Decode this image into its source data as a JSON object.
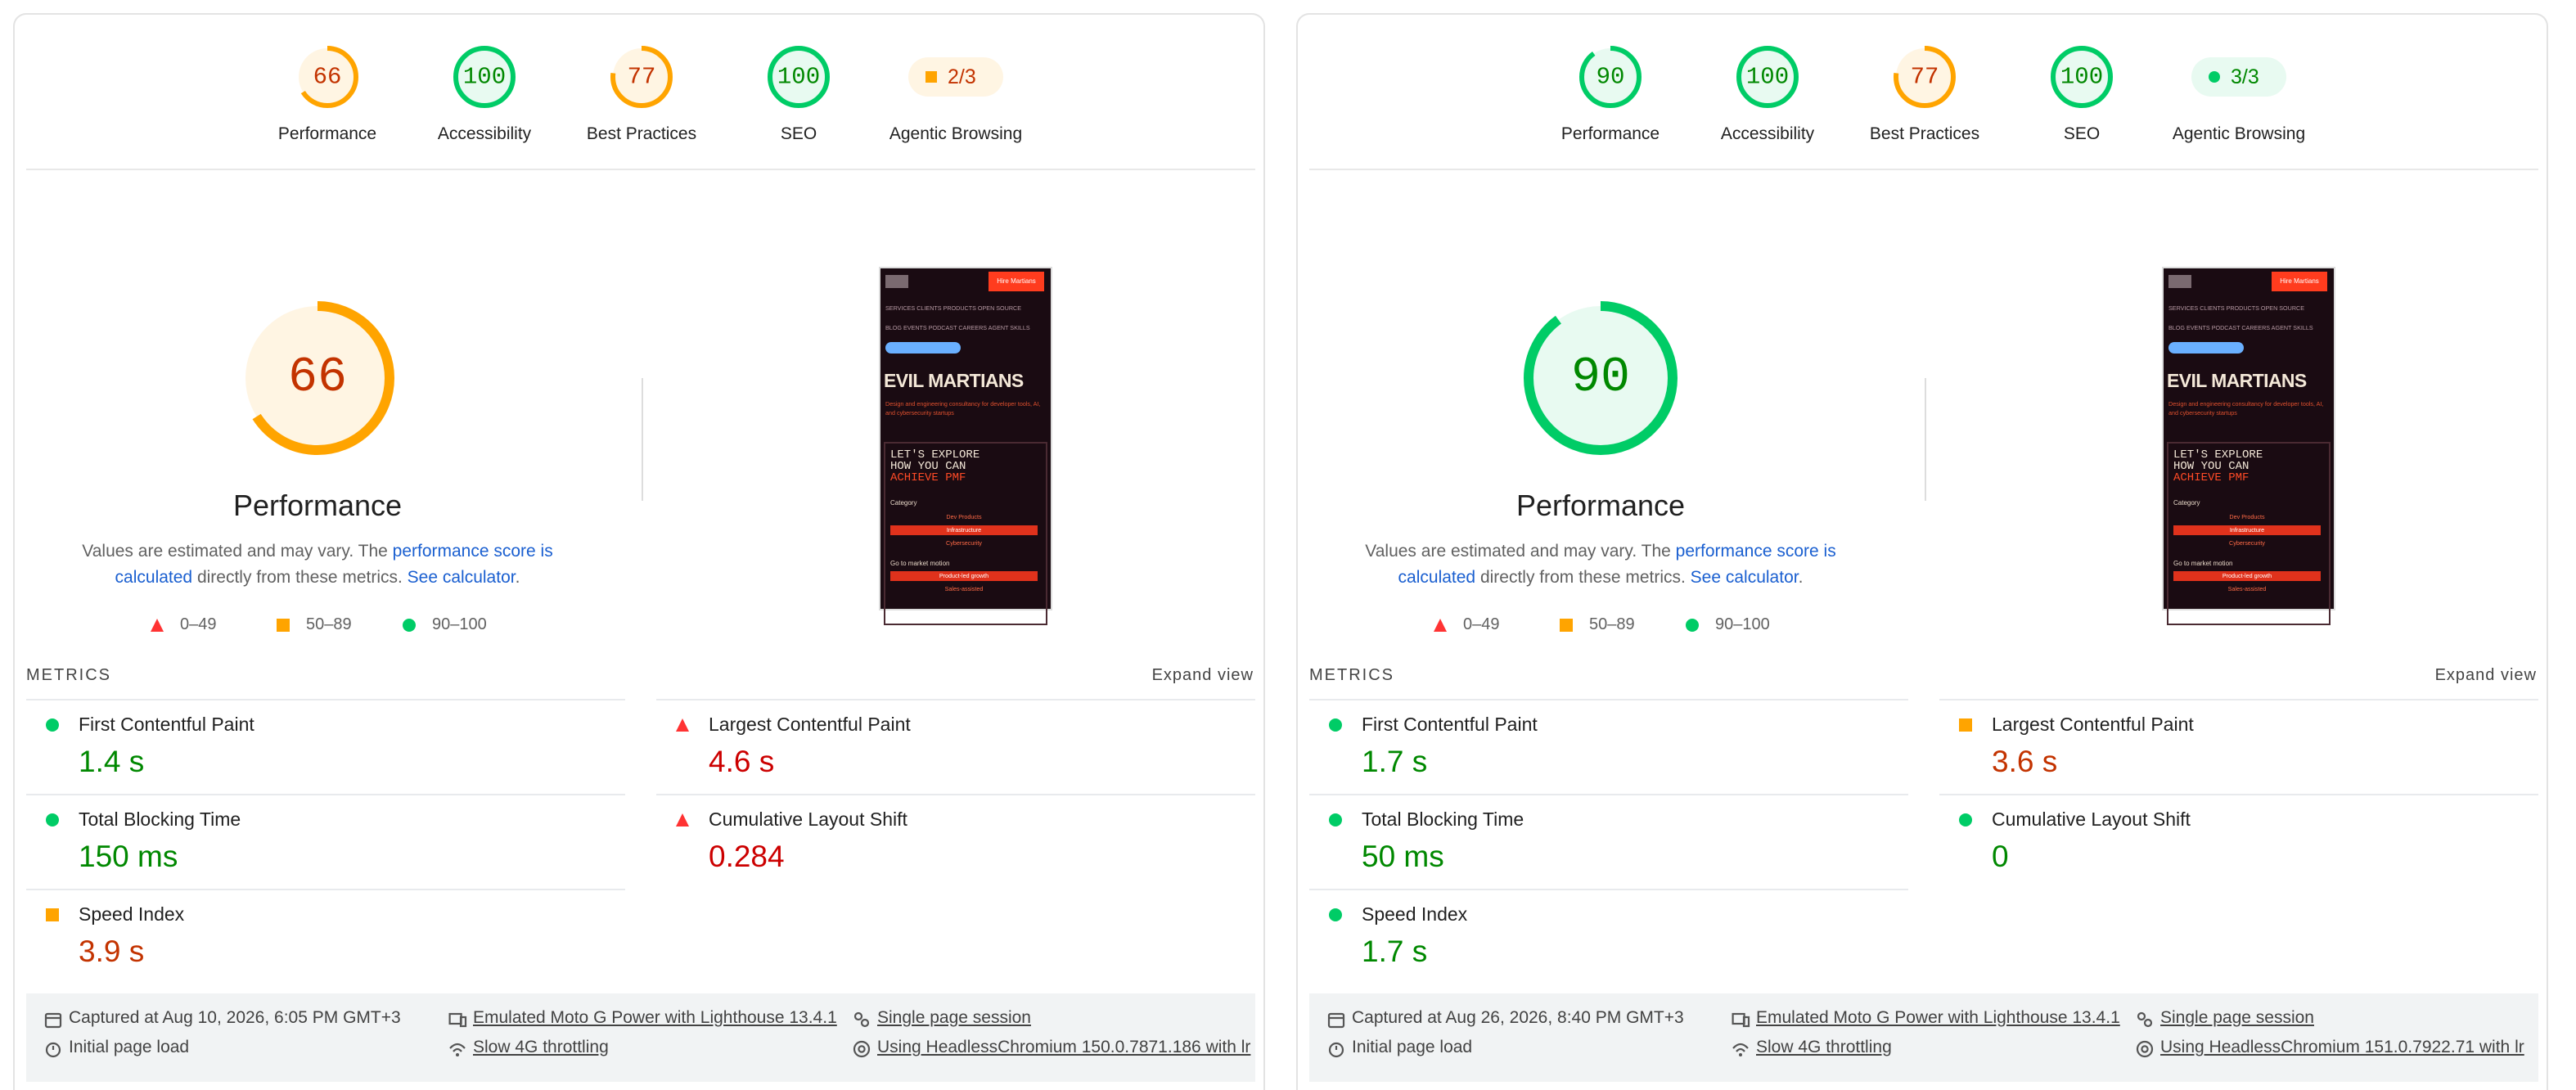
{
  "screenshot": {
    "button": "Hire Martians",
    "nav": [
      "SERVICES CLIENTS PRODUCTS OPEN SOURCE",
      "BLOG EVENTS PODCAST CAREERS AGENT SKILLS"
    ],
    "title": "EVIL MARTIANS",
    "subtitle": "Design and engineering consultancy for developer tools, AI, and cybersecurity startups",
    "headline": [
      "LET'S EXPLORE",
      "HOW YOU CAN"
    ],
    "highlight": "ACHIEVE PMF",
    "category_label": "Category",
    "categories": [
      "Dev Products",
      "Infrastructure",
      "Cybersecurity"
    ],
    "motion_label": "Go to market motion",
    "motions": [
      "Product-led growth",
      "Sales-assisted"
    ]
  },
  "reports": [
    {
      "categories": [
        {
          "label": "Performance",
          "score": 66,
          "rating": "average"
        },
        {
          "label": "Accessibility",
          "score": 100,
          "rating": "pass"
        },
        {
          "label": "Best Practices",
          "score": 77,
          "rating": "average"
        },
        {
          "label": "SEO",
          "score": 100,
          "rating": "pass"
        },
        {
          "label": "Agentic Browsing",
          "score": "2/3",
          "rating": "average"
        }
      ],
      "summary": {
        "before": "Values are estimated and may vary. The ",
        "link": "performance score is calculated",
        "middle": " directly from these metrics. ",
        "calculator": "See calculator",
        "after": "."
      },
      "legend": [
        {
          "rating": "fail",
          "label": "0–49"
        },
        {
          "rating": "average",
          "label": "50–89"
        },
        {
          "rating": "pass",
          "label": "90–100"
        }
      ],
      "metrics_title": "METRICS",
      "expand": "Expand view",
      "metrics": [
        {
          "label": "First Contentful Paint",
          "value": "1.4 s",
          "rating": "pass"
        },
        {
          "label": "Largest Contentful Paint",
          "value": "4.6 s",
          "rating": "fail"
        },
        {
          "label": "Total Blocking Time",
          "value": "150 ms",
          "rating": "pass"
        },
        {
          "label": "Cumulative Layout Shift",
          "value": "0.284",
          "rating": "fail"
        },
        {
          "label": "Speed Index",
          "value": "3.9 s",
          "rating": "average"
        }
      ],
      "footer": [
        "Captured at Aug 10, 2026, 6:05 PM GMT+3",
        "Initial page load",
        "Emulated Moto G Power with Lighthouse 13.4.1",
        "Slow 4G throttling",
        "Single page session",
        "Using HeadlessChromium 150.0.7871.186 with lr"
      ]
    },
    {
      "categories": [
        {
          "label": "Performance",
          "score": 90,
          "rating": "pass"
        },
        {
          "label": "Accessibility",
          "score": 100,
          "rating": "pass"
        },
        {
          "label": "Best Practices",
          "score": 77,
          "rating": "average"
        },
        {
          "label": "SEO",
          "score": 100,
          "rating": "pass"
        },
        {
          "label": "Agentic Browsing",
          "score": "3/3",
          "rating": "pass"
        }
      ],
      "summary": {
        "before": "Values are estimated and may vary. The ",
        "link": "performance score is calculated",
        "middle": " directly from these metrics. ",
        "calculator": "See calculator",
        "after": "."
      },
      "legend": [
        {
          "rating": "fail",
          "label": "0–49"
        },
        {
          "rating": "average",
          "label": "50–89"
        },
        {
          "rating": "pass",
          "label": "90–100"
        }
      ],
      "metrics_title": "METRICS",
      "expand": "Expand view",
      "metrics": [
        {
          "label": "First Contentful Paint",
          "value": "1.7 s",
          "rating": "pass"
        },
        {
          "label": "Largest Contentful Paint",
          "value": "3.6 s",
          "rating": "average"
        },
        {
          "label": "Total Blocking Time",
          "value": "50 ms",
          "rating": "pass"
        },
        {
          "label": "Cumulative Layout Shift",
          "value": "0",
          "rating": "pass"
        },
        {
          "label": "Speed Index",
          "value": "1.7 s",
          "rating": "pass"
        }
      ],
      "footer": [
        "Captured at Aug 26, 2026, 8:40 PM GMT+3",
        "Initial page load",
        "Emulated Moto G Power with Lighthouse 13.4.1",
        "Slow 4G throttling",
        "Single page session",
        "Using HeadlessChromium 151.0.7922.71 with lr"
      ]
    }
  ]
}
